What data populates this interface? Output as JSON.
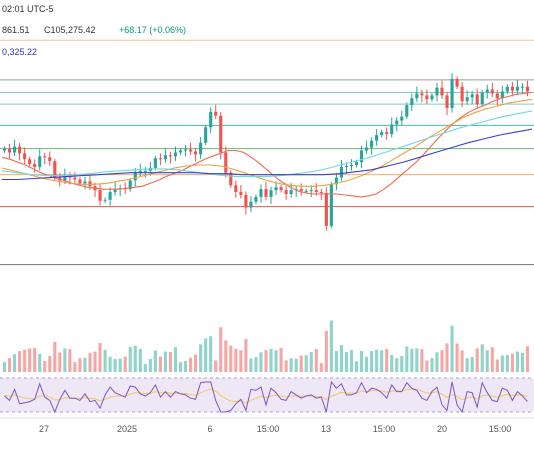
{
  "header": {
    "time": "02:01 UTC-5",
    "ohlc": "861.51",
    "close": "C105,275.42",
    "change": "+68.17 (+0.06%)",
    "ma_value": "0,325.22"
  },
  "colors": {
    "up": "#26a69a",
    "down": "#ef5350",
    "up_vol": "#8fd3cb",
    "down_vol": "#f4a7a5",
    "ma_red": "#f06a55",
    "ma_orange": "#f0a040",
    "ma_cyan": "#6fd8e3",
    "ma_blue": "#3b40c4",
    "rsi_line": "#7e57c2",
    "rsi_signal": "#f4c95d",
    "rsi_band": "#ede7f6"
  },
  "chart_data": [
    {
      "type": "candlestick",
      "title": "",
      "x_tick_labels": [
        "27",
        "2025",
        "6",
        "15:00",
        "13",
        "15:00",
        "20",
        "15:00"
      ],
      "ylim": [
        85000,
        115000
      ],
      "horizontal_levels": [
        {
          "value": 112900,
          "color": "#f0c38a"
        },
        {
          "value": 108800,
          "color": "#9e9e9e"
        },
        {
          "value": 107500,
          "color": "#80cbc4"
        },
        {
          "value": 106300,
          "color": "#80cbc4"
        },
        {
          "value": 104100,
          "color": "#4db6ac"
        },
        {
          "value": 101700,
          "color": "#66bb6a"
        },
        {
          "value": 99000,
          "color": "#f0b060"
        },
        {
          "value": 95700,
          "color": "#ef5350"
        },
        {
          "value": 89700,
          "color": "#757575"
        }
      ],
      "close": [
        101700,
        101300,
        101900,
        101200,
        100600,
        100100,
        99800,
        100900,
        100800,
        100400,
        98700,
        98400,
        98900,
        98700,
        98500,
        98100,
        98300,
        97800,
        97400,
        96300,
        96400,
        97200,
        97500,
        97600,
        97500,
        98400,
        99200,
        99400,
        99400,
        99700,
        100700,
        100600,
        101000,
        100900,
        101300,
        101500,
        101600,
        101400,
        101100,
        102300,
        103900,
        105500,
        105100,
        101300,
        99200,
        97900,
        97200,
        96900,
        95600,
        96200,
        96700,
        97500,
        96700,
        97400,
        97700,
        97400,
        97000,
        97400,
        97500,
        97300,
        97300,
        97400,
        97200,
        97100,
        93700,
        98000,
        98700,
        99800,
        99900,
        100000,
        100300,
        101500,
        101800,
        102500,
        103100,
        103400,
        103200,
        104200,
        104600,
        105000,
        106200,
        106900,
        107400,
        107200,
        106800,
        107200,
        108000,
        107200,
        105900,
        108900,
        108100,
        106600,
        107000,
        107300,
        106300,
        107500,
        107800,
        107400,
        106900,
        107600,
        108100,
        107700,
        108100,
        108100,
        107600
      ],
      "ma_red": [
        100800,
        100600,
        100300,
        100000,
        99600,
        99200,
        98900,
        98600,
        98400,
        98100,
        97900,
        97700,
        97600,
        97500,
        97500,
        97500,
        97600,
        97700,
        97800,
        98100,
        98400,
        98800,
        99100,
        99400,
        99800,
        100200,
        100600,
        100900,
        101200,
        101500,
        101500,
        101300,
        100800,
        100200,
        99500,
        98800,
        98200,
        97700,
        97300,
        97100,
        97000,
        97000,
        97000,
        97000,
        96900,
        96800,
        96700,
        96800,
        97000,
        97500,
        98100,
        98800,
        99500,
        100200,
        101000,
        101900,
        102800,
        103600,
        104400,
        105000,
        105500,
        105900,
        106200,
        106600,
        106900,
        107100,
        107300,
        107400,
        107500
      ],
      "ma_orange": [
        99700,
        99400,
        99100,
        98800,
        98500,
        98300,
        98100,
        98000,
        98000,
        98100,
        98300,
        98500,
        98800,
        99100,
        99400,
        99700,
        99900,
        100000,
        100000,
        99900,
        99600,
        99200,
        98800,
        98400,
        98100,
        97900,
        97800,
        97800,
        97900,
        98100,
        98400,
        98800,
        99300,
        99900,
        100600,
        101300,
        102000,
        102800,
        103500,
        104200,
        104900,
        105400,
        105800,
        106100,
        106400,
        106600,
        106800
      ],
      "ma_cyan": [
        99400,
        99200,
        99000,
        98900,
        98900,
        99000,
        99100,
        99300,
        99400,
        99500,
        99600,
        99600,
        99500,
        99300,
        99100,
        98900,
        98800,
        98800,
        98800,
        98900,
        99100,
        99300,
        99600,
        100000,
        100400,
        100800,
        101300,
        101800,
        102300,
        102800,
        103300,
        103800,
        104200,
        104600,
        105000,
        105300,
        105600
      ],
      "ma_blue": [
        98500,
        98500,
        98600,
        98700,
        98800,
        98900,
        99000,
        99100,
        99200,
        99200,
        99200,
        99200,
        99200,
        99100,
        99100,
        99000,
        99000,
        99000,
        99000,
        99000,
        99000,
        99100,
        99300,
        99500,
        99900,
        100300,
        100800,
        101300,
        101800,
        102300,
        102700,
        103100,
        103400,
        103700
      ]
    }
  ]
}
